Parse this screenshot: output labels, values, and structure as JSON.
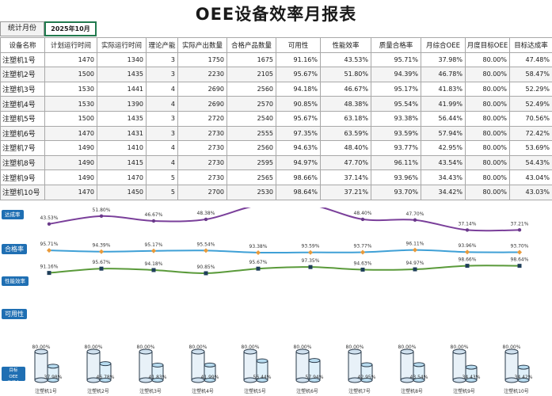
{
  "title": "OEE设备效率月报表",
  "period": {
    "label": "统计月份",
    "value": "2025年10月"
  },
  "table": {
    "headers": [
      "设备名称",
      "计划运行时间",
      "实际运行时间",
      "理论产能",
      "实际产出数量",
      "合格产品数量",
      "可用性",
      "性能效率",
      "质量合格率",
      "月综合OEE",
      "月度目标OEE",
      "目标达成率"
    ],
    "rows": [
      [
        "注塑机1号",
        "1470",
        "1340",
        "3",
        "1750",
        "1675",
        "91.16%",
        "43.53%",
        "95.71%",
        "37.98%",
        "80.00%",
        "47.48%"
      ],
      [
        "注塑机2号",
        "1500",
        "1435",
        "3",
        "2230",
        "2105",
        "95.67%",
        "51.80%",
        "94.39%",
        "46.78%",
        "80.00%",
        "58.47%"
      ],
      [
        "注塑机3号",
        "1530",
        "1441",
        "4",
        "2690",
        "2560",
        "94.18%",
        "46.67%",
        "95.17%",
        "41.83%",
        "80.00%",
        "52.29%"
      ],
      [
        "注塑机4号",
        "1530",
        "1390",
        "4",
        "2690",
        "2570",
        "90.85%",
        "48.38%",
        "95.54%",
        "41.99%",
        "80.00%",
        "52.49%"
      ],
      [
        "注塑机5号",
        "1500",
        "1435",
        "3",
        "2720",
        "2540",
        "95.67%",
        "63.18%",
        "93.38%",
        "56.44%",
        "80.00%",
        "70.56%"
      ],
      [
        "注塑机6号",
        "1470",
        "1431",
        "3",
        "2730",
        "2555",
        "97.35%",
        "63.59%",
        "93.59%",
        "57.94%",
        "80.00%",
        "72.42%"
      ],
      [
        "注塑机7号",
        "1490",
        "1410",
        "4",
        "2730",
        "2560",
        "94.63%",
        "48.40%",
        "93.77%",
        "42.95%",
        "80.00%",
        "53.69%"
      ],
      [
        "注塑机8号",
        "1490",
        "1415",
        "4",
        "2730",
        "2595",
        "94.97%",
        "47.70%",
        "96.11%",
        "43.54%",
        "80.00%",
        "54.43%"
      ],
      [
        "注塑机9号",
        "1490",
        "1470",
        "5",
        "2730",
        "2565",
        "98.66%",
        "37.14%",
        "93.96%",
        "34.43%",
        "80.00%",
        "43.04%"
      ],
      [
        "注塑机10号",
        "1470",
        "1450",
        "5",
        "2700",
        "2530",
        "98.64%",
        "37.21%",
        "93.70%",
        "34.42%",
        "80.00%",
        "43.03%"
      ]
    ]
  },
  "chart_labels": {
    "achievement": "达成率",
    "quality": "合格率",
    "performance": "性能效率",
    "availability": "可用性",
    "oee_multi": [
      "目标OEE",
      "月综合OEE"
    ]
  },
  "colors": {
    "achievement": "#f08a2c",
    "quality": "#3fa0d6",
    "performance": "#7a3f9a",
    "availability": "#5a9a3a",
    "tag": "#1f6fb3",
    "marker_dark": "#2b3a4a"
  },
  "chart_data": [
    {
      "type": "line",
      "categories": [
        "注塑机1号",
        "注塑机2号",
        "注塑机3号",
        "注塑机4号",
        "注塑机5号",
        "注塑机6号",
        "注塑机7号",
        "注塑机8号",
        "注塑机9号",
        "注塑机10号"
      ],
      "series": [
        {
          "name": "达成率",
          "values": [
            47.48,
            58.47,
            52.29,
            52.49,
            70.56,
            72.42,
            53.69,
            54.43,
            43.04,
            43.03
          ],
          "labels": [
            "47.48%",
            "58.47%",
            "52.29%",
            "52.49%",
            "70.56%",
            "72.42%",
            "53.69%",
            "54.43%",
            "43.04%",
            "43.03%"
          ]
        },
        {
          "name": "合格率",
          "values": [
            95.71,
            94.39,
            95.17,
            95.54,
            93.38,
            93.59,
            93.77,
            96.11,
            93.96,
            93.7
          ],
          "labels": [
            "95.71%",
            "94.39%",
            "95.17%",
            "95.54%",
            "93.38%",
            "93.59%",
            "93.77%",
            "96.11%",
            "93.96%",
            "93.70%"
          ]
        }
      ]
    },
    {
      "type": "line",
      "categories": [
        "注塑机1号",
        "注塑机2号",
        "注塑机3号",
        "注塑机4号",
        "注塑机5号",
        "注塑机6号",
        "注塑机7号",
        "注塑机8号",
        "注塑机9号",
        "注塑机10号"
      ],
      "series": [
        {
          "name": "性能效率",
          "values": [
            43.53,
            51.8,
            46.67,
            48.38,
            63.18,
            63.59,
            48.4,
            47.7,
            37.14,
            37.21
          ],
          "labels": [
            "43.53%",
            "51.80%",
            "46.67%",
            "48.38%",
            "63.18%",
            "63.59%",
            "48.40%",
            "47.70%",
            "37.14%",
            "37.21%"
          ]
        },
        {
          "name": "可用性",
          "values": [
            91.16,
            95.67,
            94.18,
            90.85,
            95.67,
            97.35,
            94.63,
            94.97,
            98.66,
            98.64
          ],
          "labels": [
            "91.16%",
            "95.67%",
            "94.18%",
            "90.85%",
            "95.67%",
            "97.35%",
            "94.63%",
            "94.97%",
            "98.66%",
            "98.64%"
          ]
        }
      ]
    },
    {
      "type": "bar",
      "categories": [
        "注塑机1号",
        "注塑机2号",
        "注塑机3号",
        "注塑机4号",
        "注塑机5号",
        "注塑机6号",
        "注塑机7号",
        "注塑机8号",
        "注塑机9号",
        "注塑机10号"
      ],
      "series": [
        {
          "name": "目标OEE",
          "values": [
            80,
            80,
            80,
            80,
            80,
            80,
            80,
            80,
            80,
            80
          ],
          "labels": [
            "80.00%",
            "80.00%",
            "80.00%",
            "80.00%",
            "80.00%",
            "80.00%",
            "80.00%",
            "80.00%",
            "80.00%",
            "80.00%"
          ]
        },
        {
          "name": "月综合OEE",
          "values": [
            37.98,
            46.78,
            41.83,
            41.99,
            56.44,
            57.94,
            42.95,
            43.54,
            34.43,
            34.42
          ],
          "labels": [
            "37.98%",
            "46.78%",
            "41.83%",
            "41.99%",
            "56.44%",
            "57.94%",
            "42.95%",
            "43.54%",
            "34.43%",
            "34.42%"
          ]
        }
      ]
    }
  ]
}
